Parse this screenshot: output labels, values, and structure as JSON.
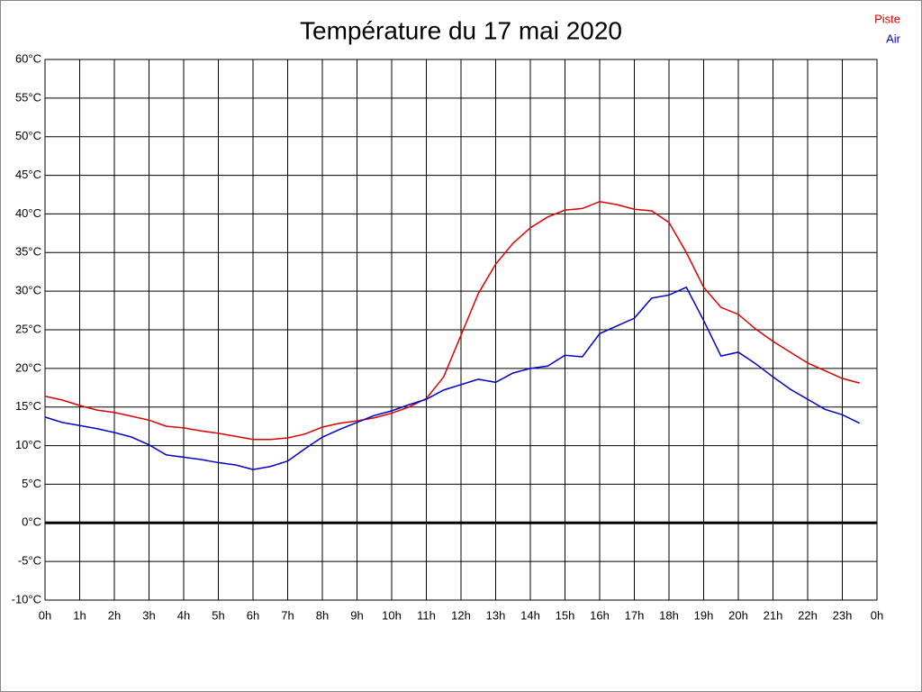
{
  "chart_data": {
    "type": "line",
    "title": "Température du 17 mai 2020",
    "x": [
      0,
      0.5,
      1,
      1.5,
      2,
      2.5,
      3,
      3.5,
      4,
      4.5,
      5,
      5.5,
      6,
      6.5,
      7,
      7.5,
      8,
      8.5,
      9,
      9.5,
      10,
      10.5,
      11,
      11.5,
      12,
      12.5,
      13,
      13.5,
      14,
      14.5,
      15,
      15.5,
      16,
      16.5,
      17,
      17.5,
      18,
      18.5,
      19,
      19.5,
      20,
      20.5,
      21,
      21.5,
      22,
      22.5,
      23,
      23.5
    ],
    "series": [
      {
        "name": "Piste",
        "color": "#dd0000",
        "values": [
          16.4,
          15.9,
          15.2,
          14.6,
          14.3,
          13.8,
          13.3,
          12.5,
          12.3,
          11.9,
          11.6,
          11.2,
          10.8,
          10.8,
          11.0,
          11.5,
          12.4,
          12.9,
          13.2,
          13.6,
          14.2,
          15.0,
          16.1,
          18.9,
          24.3,
          29.7,
          33.5,
          36.2,
          38.2,
          39.6,
          40.5,
          40.7,
          41.6,
          41.2,
          40.6,
          40.4,
          38.9,
          35.0,
          30.5,
          27.9,
          27.0,
          25.1,
          23.5,
          22.1,
          20.7,
          19.7,
          18.7,
          18.1
        ]
      },
      {
        "name": "Air",
        "color": "#0000cc",
        "values": [
          13.7,
          13.0,
          12.6,
          12.2,
          11.7,
          11.1,
          10.1,
          8.8,
          8.5,
          8.2,
          7.8,
          7.5,
          6.9,
          7.3,
          8.0,
          9.6,
          11.1,
          12.1,
          13.0,
          13.9,
          14.5,
          15.3,
          16.0,
          17.2,
          17.9,
          18.6,
          18.2,
          19.4,
          20.0,
          20.3,
          21.7,
          21.5,
          24.5,
          25.5,
          26.5,
          29.1,
          29.5,
          30.5,
          26.2,
          21.6,
          22.1,
          20.6,
          18.9,
          17.3,
          16.0,
          14.7,
          14.0,
          12.9
        ]
      }
    ],
    "xlim": [
      0,
      24
    ],
    "xticks": [
      {
        "value": 0,
        "label": "0h"
      },
      {
        "value": 1,
        "label": "1h"
      },
      {
        "value": 2,
        "label": "2h"
      },
      {
        "value": 3,
        "label": "3h"
      },
      {
        "value": 4,
        "label": "4h"
      },
      {
        "value": 5,
        "label": "5h"
      },
      {
        "value": 6,
        "label": "6h"
      },
      {
        "value": 7,
        "label": "7h"
      },
      {
        "value": 8,
        "label": "8h"
      },
      {
        "value": 9,
        "label": "9h"
      },
      {
        "value": 10,
        "label": "10h"
      },
      {
        "value": 11,
        "label": "11h"
      },
      {
        "value": 12,
        "label": "12h"
      },
      {
        "value": 13,
        "label": "13h"
      },
      {
        "value": 14,
        "label": "14h"
      },
      {
        "value": 15,
        "label": "15h"
      },
      {
        "value": 16,
        "label": "16h"
      },
      {
        "value": 17,
        "label": "17h"
      },
      {
        "value": 18,
        "label": "18h"
      },
      {
        "value": 19,
        "label": "19h"
      },
      {
        "value": 20,
        "label": "20h"
      },
      {
        "value": 21,
        "label": "21h"
      },
      {
        "value": 22,
        "label": "22h"
      },
      {
        "value": 23,
        "label": "23h"
      },
      {
        "value": 24,
        "label": "0h"
      }
    ],
    "ylim": [
      -10,
      60
    ],
    "yticks": [
      {
        "value": -10,
        "label": "-10°C"
      },
      {
        "value": -5,
        "label": "-5°C"
      },
      {
        "value": 0,
        "label": "0°C"
      },
      {
        "value": 5,
        "label": "5°C"
      },
      {
        "value": 10,
        "label": "10°C"
      },
      {
        "value": 15,
        "label": "15°C"
      },
      {
        "value": 20,
        "label": "20°C"
      },
      {
        "value": 25,
        "label": "25°C"
      },
      {
        "value": 30,
        "label": "30°C"
      },
      {
        "value": 35,
        "label": "35°C"
      },
      {
        "value": 40,
        "label": "40°C"
      },
      {
        "value": 45,
        "label": "45°C"
      },
      {
        "value": 50,
        "label": "50°C"
      },
      {
        "value": 55,
        "label": "55°C"
      },
      {
        "value": 60,
        "label": "60°C"
      }
    ],
    "grid": true,
    "legend": "upper right"
  }
}
